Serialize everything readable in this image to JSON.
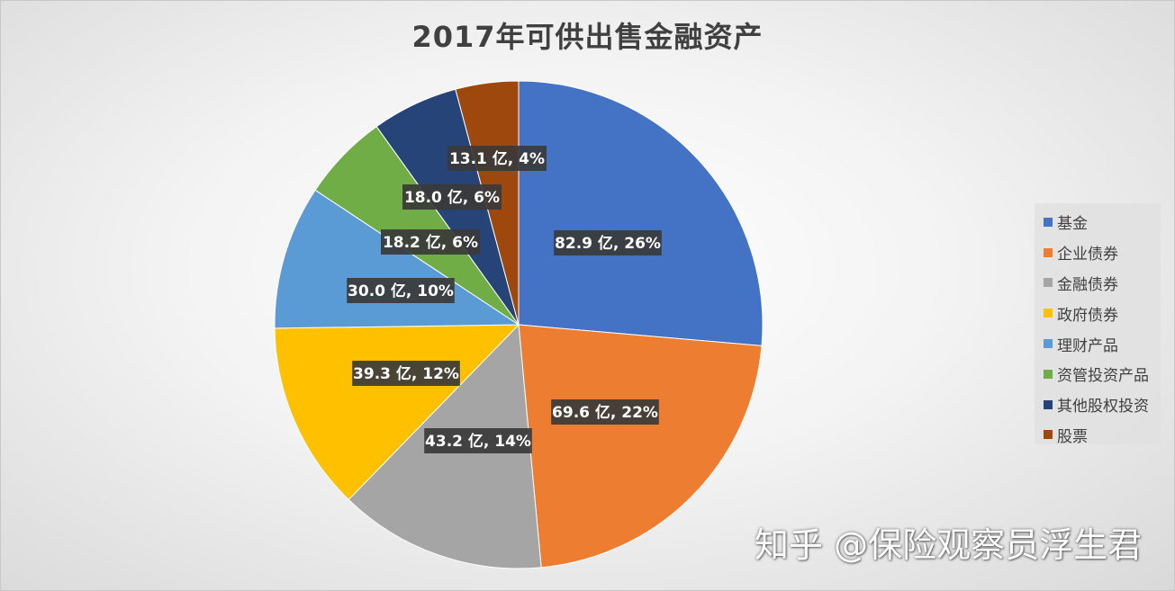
{
  "chart_data": {
    "type": "pie",
    "title": "2017年可供出售金融资产",
    "unit": "亿",
    "slices": [
      {
        "name": "基金",
        "value": 82.9,
        "percent": 26,
        "color": "#4472C4"
      },
      {
        "name": "企业债券",
        "value": 69.6,
        "percent": 22,
        "color": "#ED7D31"
      },
      {
        "name": "金融债券",
        "value": 43.2,
        "percent": 14,
        "color": "#A5A5A5"
      },
      {
        "name": "政府债券",
        "value": 39.3,
        "percent": 12,
        "color": "#FFC000"
      },
      {
        "name": "理财产品",
        "value": 30.0,
        "percent": 10,
        "color": "#5B9BD5"
      },
      {
        "name": "资管投资产品",
        "value": 18.2,
        "percent": 6,
        "color": "#70AD47"
      },
      {
        "name": "其他股权投资",
        "value": 18.0,
        "percent": 6,
        "color": "#264478"
      },
      {
        "name": "股票",
        "value": 13.1,
        "percent": 4,
        "color": "#9E480E"
      }
    ],
    "data_labels": [
      "82.9 亿, 26%",
      "69.6 亿, 22%",
      "43.2 亿, 14%",
      "39.3 亿, 12%",
      "30.0 亿, 10%",
      "18.2 亿, 6%",
      "18.0 亿, 6%",
      "13.1 亿, 4%"
    ],
    "legend_position": "right"
  },
  "watermark": "知乎 @保险观察员浮生君"
}
